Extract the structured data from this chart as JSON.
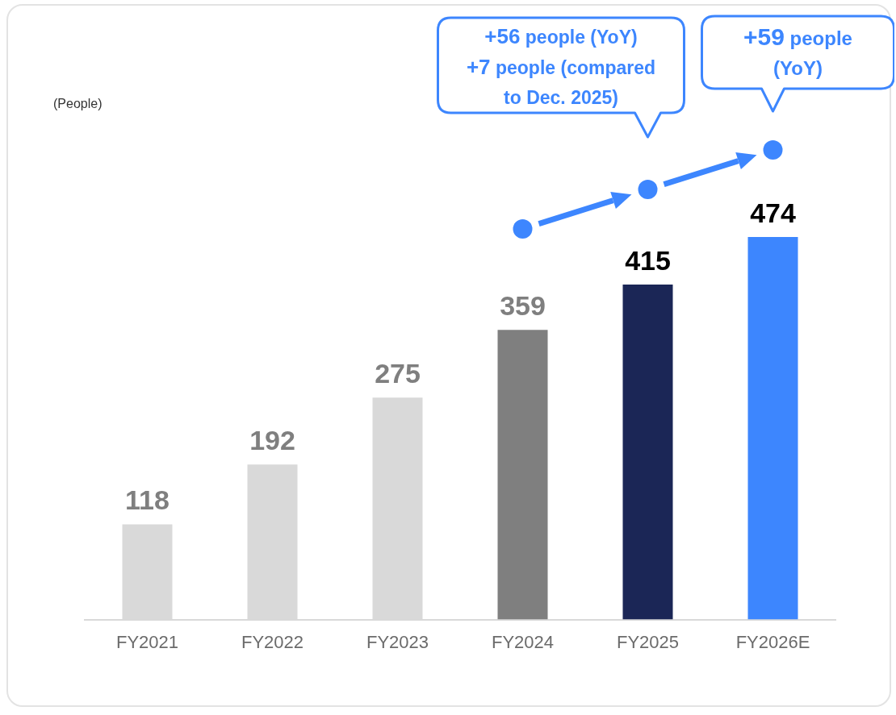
{
  "chart_data": {
    "type": "bar",
    "categories": [
      "FY2021",
      "FY2022",
      "FY2023",
      "FY2024",
      "FY2025",
      "FY2026E"
    ],
    "values": [
      118,
      192,
      275,
      359,
      415,
      474
    ],
    "colors": [
      "#d9d9d9",
      "#d9d9d9",
      "#d9d9d9",
      "#7f7f7f",
      "#1b2656",
      "#3d86fe"
    ],
    "tick_labels": "x",
    "data_labels": true,
    "annotations": [
      "(People)",
      "+56 people (YoY) +7 people (compared to Dec. 2025)",
      "+59 people (YoY)"
    ]
  }
}
